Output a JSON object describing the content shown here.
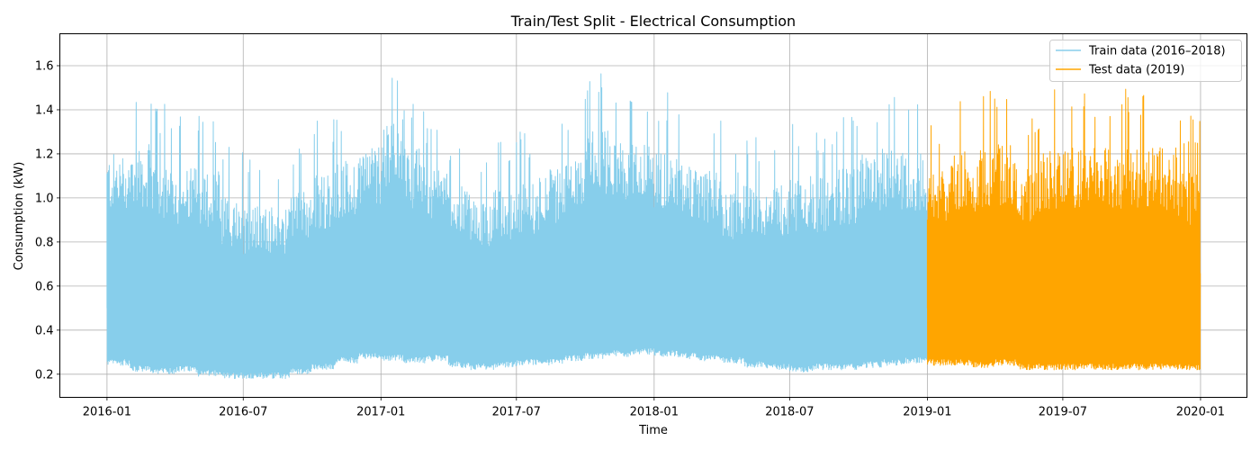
{
  "chart_data": {
    "type": "line",
    "title": "Train/Test Split - Electrical Consumption",
    "xlabel": "Time",
    "ylabel": "Consumption (kW)",
    "xlim": [
      "2015-10-30",
      "2020-03-03"
    ],
    "ylim": [
      0.095,
      1.745
    ],
    "grid": true,
    "legend_position": "top-right",
    "x_ticks": [
      "2016-01",
      "2016-07",
      "2017-01",
      "2017-07",
      "2018-01",
      "2018-07",
      "2019-01",
      "2019-07",
      "2020-01"
    ],
    "y_ticks": [
      0.2,
      0.4,
      0.6,
      0.8,
      1.0,
      1.2,
      1.4,
      1.6
    ],
    "y_tick_labels": [
      "0.2",
      "0.4",
      "0.6",
      "0.8",
      "1.0",
      "1.2",
      "1.4",
      "1.6"
    ],
    "series": [
      {
        "name": "Train data (2016–2018)",
        "color": "#87CEEB",
        "start": "2016-01-01",
        "end": "2018-12-31",
        "monthly_min": [
          0.24,
          0.21,
          0.2,
          0.21,
          0.19,
          0.18,
          0.18,
          0.18,
          0.2,
          0.22,
          0.25,
          0.27,
          0.26,
          0.25,
          0.26,
          0.23,
          0.22,
          0.23,
          0.24,
          0.24,
          0.26,
          0.27,
          0.28,
          0.29,
          0.28,
          0.27,
          0.26,
          0.25,
          0.23,
          0.22,
          0.21,
          0.22,
          0.22,
          0.23,
          0.24,
          0.25
        ],
        "monthly_max": [
          1.47,
          1.53,
          1.44,
          1.4,
          1.39,
          1.24,
          1.18,
          1.18,
          1.27,
          1.36,
          1.42,
          1.52,
          1.67,
          1.5,
          1.38,
          1.28,
          1.22,
          1.26,
          1.3,
          1.38,
          1.42,
          1.6,
          1.55,
          1.51,
          1.48,
          1.4,
          1.36,
          1.23,
          1.28,
          1.3,
          1.35,
          1.33,
          1.39,
          1.48,
          1.5,
          1.47
        ]
      },
      {
        "name": "Test data (2019)",
        "color": "#FFA500",
        "start": "2019-01-01",
        "end": "2019-12-31",
        "monthly_min": [
          0.24,
          0.24,
          0.23,
          0.24,
          0.22,
          0.22,
          0.22,
          0.22,
          0.22,
          0.22,
          0.22,
          0.22
        ],
        "monthly_max": [
          1.38,
          1.5,
          1.49,
          1.53,
          1.38,
          1.51,
          1.51,
          1.51,
          1.51,
          1.51,
          1.51,
          1.38
        ]
      }
    ]
  }
}
